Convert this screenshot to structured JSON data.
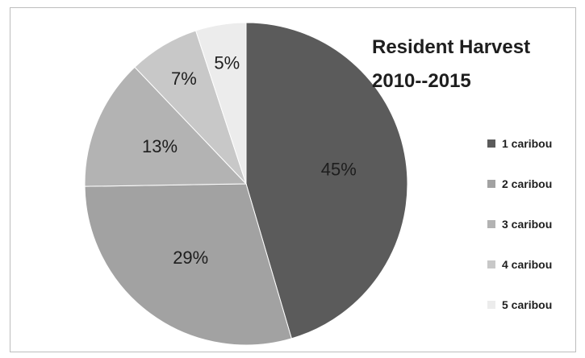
{
  "chart_data": {
    "type": "pie",
    "title_lines": [
      "Resident Harvest",
      "2010--2015"
    ],
    "categories": [
      "1 caribou",
      "2 caribou",
      "3 caribou",
      "4 caribou",
      "5 caribou"
    ],
    "values": [
      45,
      29,
      13,
      7,
      5
    ],
    "data_labels": [
      "45%",
      "29%",
      "13%",
      "7%",
      "5%"
    ],
    "colors": [
      "#5b5b5b",
      "#a2a2a2",
      "#b3b3b3",
      "#c8c8c8",
      "#ececec"
    ],
    "start_angle_deg": 0,
    "direction": "clockwise",
    "legend_position": "right"
  }
}
